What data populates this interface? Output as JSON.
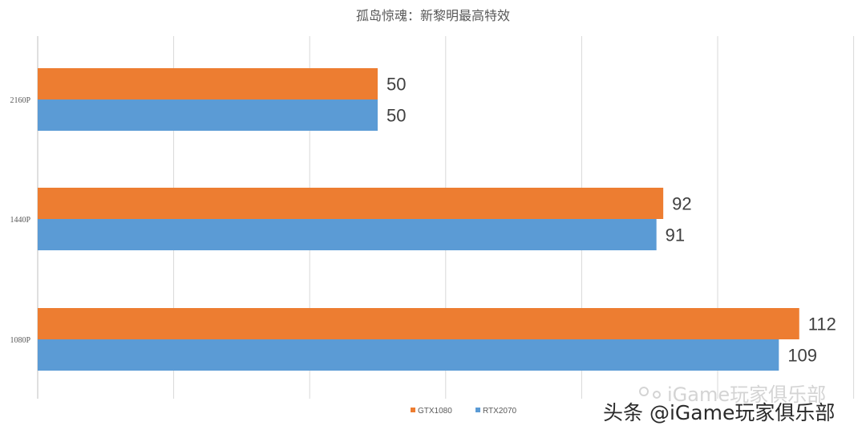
{
  "chart_data": {
    "type": "bar",
    "orientation": "horizontal",
    "title": "孤岛惊魂：新黎明最高特效",
    "categories": [
      "2160P",
      "1440P",
      "1080P"
    ],
    "series": [
      {
        "name": "GTX1080",
        "values": [
          50,
          92,
          112
        ],
        "color": "#ED7D31"
      },
      {
        "name": "RTX2070",
        "values": [
          50,
          91,
          109
        ],
        "color": "#5B9BD5"
      }
    ],
    "xlim": [
      0,
      120
    ],
    "grid": true,
    "legend": "bottom"
  },
  "watermark": {
    "main": "头条 @iGame玩家俱乐部",
    "faint": "iGame玩家俱乐部"
  }
}
